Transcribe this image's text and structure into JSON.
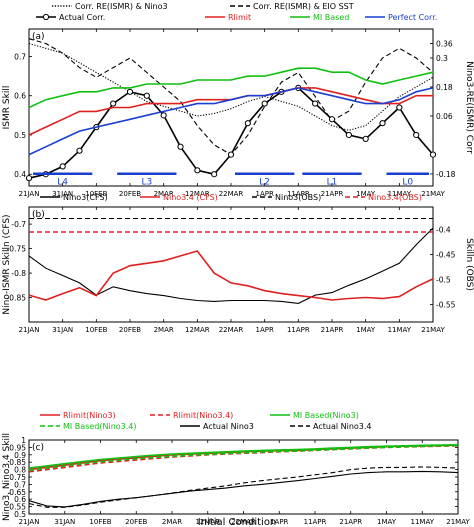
{
  "colors": {
    "black": "#000000",
    "red": "#e02020",
    "green": "#10c010",
    "blue": "#1a3fd0",
    "darkred": "#a52a2a"
  },
  "xticks": [
    "21JAN",
    "31JAN",
    "10FEB",
    "20FEB",
    "2MAR",
    "12MAR",
    "22MAR",
    "1APR",
    "11APR",
    "21APR",
    "1MAY",
    "11MAY",
    "21MAY"
  ],
  "shared_xlabel": "Initial Condition",
  "chart_data": [
    {
      "type": "line",
      "panel": "(a)",
      "ylabel": "ISMR Skill",
      "y2label": "Nino3-RE(ISMR) Corr",
      "ylim": [
        0.37,
        0.77
      ],
      "yticks": [
        0.4,
        0.5,
        0.6,
        0.7
      ],
      "y2lim": [
        -0.23,
        0.42
      ],
      "y2ticks": [
        -0.18,
        0.06,
        0.18,
        0.3,
        0.36
      ],
      "x": [
        0,
        1,
        2,
        3,
        4,
        5,
        6,
        7,
        8,
        9,
        10,
        11,
        12,
        13,
        14,
        15,
        16,
        17,
        18,
        19,
        20,
        21,
        22,
        23,
        24
      ],
      "legend": [
        "Corr. RE(ISMR) & Nino3",
        "Corr. RE(ISMR) & EIO SST",
        "Actual Corr.",
        "Rlimit",
        "MI Based",
        "Perfect Corr."
      ],
      "series": [
        {
          "name": "Corr. RE(ISMR) & Nino3",
          "axis": "right",
          "style": "dotted",
          "color": "black",
          "values": [
            0.36,
            0.34,
            0.32,
            0.28,
            0.24,
            0.2,
            0.16,
            0.12,
            0.1,
            0.08,
            0.06,
            0.07,
            0.09,
            0.12,
            0.14,
            0.12,
            0.1,
            0.06,
            0.02,
            0.0,
            0.02,
            0.08,
            0.14,
            0.18,
            0.22
          ]
        },
        {
          "name": "Corr. RE(ISMR) & EIO SST",
          "axis": "right",
          "style": "dashed",
          "color": "black",
          "values": [
            0.38,
            0.36,
            0.32,
            0.26,
            0.22,
            0.26,
            0.3,
            0.24,
            0.18,
            0.12,
            0.02,
            -0.06,
            -0.1,
            -0.02,
            0.1,
            0.2,
            0.24,
            0.14,
            0.04,
            0.08,
            0.2,
            0.3,
            0.34,
            0.3,
            0.24
          ]
        },
        {
          "name": "Actual Corr.",
          "axis": "left",
          "style": "solid-marker",
          "color": "black",
          "values": [
            0.39,
            0.4,
            0.42,
            0.46,
            0.52,
            0.58,
            0.61,
            0.6,
            0.55,
            0.47,
            0.41,
            0.4,
            0.45,
            0.53,
            0.58,
            0.61,
            0.62,
            0.58,
            0.54,
            0.5,
            0.49,
            0.53,
            0.57,
            0.5,
            0.45
          ]
        },
        {
          "name": "Rlimit",
          "axis": "left",
          "style": "solid",
          "color": "red",
          "values": [
            0.5,
            0.52,
            0.54,
            0.56,
            0.56,
            0.57,
            0.57,
            0.58,
            0.58,
            0.58,
            0.59,
            0.59,
            0.59,
            0.6,
            0.6,
            0.61,
            0.62,
            0.62,
            0.61,
            0.6,
            0.59,
            0.58,
            0.58,
            0.6,
            0.6
          ]
        },
        {
          "name": "MI Based",
          "axis": "left",
          "style": "solid",
          "color": "green",
          "values": [
            0.57,
            0.59,
            0.6,
            0.61,
            0.61,
            0.62,
            0.62,
            0.63,
            0.63,
            0.63,
            0.64,
            0.64,
            0.64,
            0.65,
            0.65,
            0.66,
            0.67,
            0.67,
            0.66,
            0.66,
            0.64,
            0.63,
            0.64,
            0.65,
            0.66
          ]
        },
        {
          "name": "Perfect Corr.",
          "axis": "left",
          "style": "solid",
          "color": "blue",
          "values": [
            0.45,
            0.47,
            0.49,
            0.51,
            0.52,
            0.53,
            0.54,
            0.55,
            0.56,
            0.57,
            0.58,
            0.58,
            0.59,
            0.6,
            0.6,
            0.61,
            0.62,
            0.61,
            0.6,
            0.59,
            0.58,
            0.58,
            0.59,
            0.61,
            0.62
          ]
        }
      ],
      "annotations": [
        {
          "text": "L4",
          "x_start": 0,
          "x_end": 4
        },
        {
          "text": "L3",
          "x_start": 5,
          "x_end": 9
        },
        {
          "text": "L2",
          "x_start": 12,
          "x_end": 16
        },
        {
          "text": "L1",
          "x_start": 16,
          "x_end": 20
        },
        {
          "text": "L0",
          "x_start": 21,
          "x_end": 24
        }
      ]
    },
    {
      "type": "line",
      "panel": "(b)",
      "ylabel": "Nino-ISMR Skilln (CFS)",
      "y2label": "Skilln (OBS)",
      "ylim": [
        -0.9,
        -0.665
      ],
      "yticks": [
        -0.85,
        -0.8,
        -0.75,
        -0.7
      ],
      "y2lim": [
        -0.585,
        -0.355
      ],
      "y2ticks": [
        -0.55,
        -0.5,
        -0.45,
        -0.4
      ],
      "x": [
        0,
        1,
        2,
        3,
        4,
        5,
        6,
        7,
        8,
        9,
        10,
        11,
        12,
        13,
        14,
        15,
        16,
        17,
        18,
        19,
        20,
        21,
        22,
        23,
        24
      ],
      "legend": [
        "Nino3(CFS)",
        "Nino3.4 (CFS)",
        "Nino3(OBS)",
        "Nino3.4(OBS)"
      ],
      "series": [
        {
          "name": "Nino3(CFS)",
          "axis": "left",
          "style": "solid",
          "color": "black",
          "values": [
            -0.765,
            -0.79,
            -0.805,
            -0.82,
            -0.845,
            -0.828,
            -0.836,
            -0.842,
            -0.846,
            -0.852,
            -0.856,
            -0.858,
            -0.856,
            -0.856,
            -0.856,
            -0.858,
            -0.862,
            -0.845,
            -0.84,
            -0.825,
            -0.812,
            -0.796,
            -0.78,
            -0.742,
            -0.708
          ]
        },
        {
          "name": "Nino3.4 (CFS)",
          "axis": "left",
          "style": "solid",
          "color": "red",
          "values": [
            -0.845,
            -0.855,
            -0.842,
            -0.83,
            -0.846,
            -0.8,
            -0.785,
            -0.78,
            -0.775,
            -0.765,
            -0.755,
            -0.8,
            -0.82,
            -0.826,
            -0.836,
            -0.842,
            -0.846,
            -0.85,
            -0.855,
            -0.852,
            -0.85,
            -0.852,
            -0.848,
            -0.828,
            -0.812
          ]
        },
        {
          "name": "Nino3(OBS)",
          "axis": "right",
          "style": "dashed",
          "color": "black",
          "values": [
            -0.378,
            -0.378,
            -0.378,
            -0.378,
            -0.378,
            -0.378,
            -0.378,
            -0.378,
            -0.378,
            -0.378,
            -0.378,
            -0.378,
            -0.378,
            -0.378,
            -0.378,
            -0.378,
            -0.378,
            -0.378,
            -0.378,
            -0.378,
            -0.378,
            -0.378,
            -0.378,
            -0.378,
            -0.378
          ]
        },
        {
          "name": "Nino3.4(OBS)",
          "axis": "right",
          "style": "dashed",
          "color": "red",
          "values": [
            -0.405,
            -0.405,
            -0.405,
            -0.405,
            -0.405,
            -0.405,
            -0.405,
            -0.405,
            -0.405,
            -0.405,
            -0.405,
            -0.405,
            -0.405,
            -0.405,
            -0.405,
            -0.405,
            -0.405,
            -0.405,
            -0.405,
            -0.405,
            -0.405,
            -0.405,
            -0.405,
            -0.405,
            -0.405
          ]
        }
      ]
    },
    {
      "type": "line",
      "panel": "(c)",
      "ylabel": "Nino3, Nino3.4 Skill",
      "ylim": [
        0.5,
        1.0
      ],
      "yticks": [
        0.5,
        0.55,
        0.6,
        0.65,
        0.7,
        0.75,
        0.8,
        0.85,
        0.9,
        0.95,
        1
      ],
      "x": [
        0,
        1,
        2,
        3,
        4,
        5,
        6,
        7,
        8,
        9,
        10,
        11,
        12,
        13,
        14,
        15,
        16,
        17,
        18,
        19,
        20,
        21,
        22,
        23,
        24
      ],
      "legend": [
        "Rlimit(Nino3)",
        "Rlimit(Nino3.4)",
        "MI Based(Nino3)",
        "MI Based(Nino3.4)",
        "Actual Nino3",
        "Actual Nino3.4"
      ],
      "series": [
        {
          "name": "Rlimit(Nino3)",
          "style": "solid",
          "color": "red",
          "values": [
            0.8,
            0.815,
            0.83,
            0.845,
            0.86,
            0.87,
            0.88,
            0.89,
            0.9,
            0.905,
            0.91,
            0.915,
            0.92,
            0.925,
            0.928,
            0.93,
            0.935,
            0.94,
            0.945,
            0.95,
            0.955,
            0.958,
            0.96,
            0.962,
            0.965
          ]
        },
        {
          "name": "Rlimit(Nino3.4)",
          "style": "dashed",
          "color": "red",
          "values": [
            0.785,
            0.8,
            0.815,
            0.83,
            0.845,
            0.855,
            0.865,
            0.875,
            0.885,
            0.892,
            0.9,
            0.905,
            0.91,
            0.915,
            0.92,
            0.925,
            0.93,
            0.935,
            0.94,
            0.945,
            0.95,
            0.953,
            0.956,
            0.958,
            0.96
          ]
        },
        {
          "name": "MI Based(Nino3)",
          "style": "solid",
          "color": "green",
          "values": [
            0.81,
            0.825,
            0.84,
            0.855,
            0.868,
            0.878,
            0.888,
            0.897,
            0.905,
            0.91,
            0.915,
            0.92,
            0.925,
            0.93,
            0.933,
            0.936,
            0.94,
            0.945,
            0.95,
            0.955,
            0.958,
            0.961,
            0.964,
            0.966,
            0.968
          ]
        },
        {
          "name": "MI Based(Nino3.4)",
          "style": "dashed",
          "color": "green",
          "values": [
            0.795,
            0.81,
            0.825,
            0.84,
            0.853,
            0.863,
            0.873,
            0.882,
            0.89,
            0.897,
            0.903,
            0.908,
            0.913,
            0.918,
            0.922,
            0.926,
            0.931,
            0.936,
            0.941,
            0.946,
            0.95,
            0.954,
            0.957,
            0.96,
            0.962
          ]
        },
        {
          "name": "Actual Nino3",
          "style": "solid",
          "color": "black",
          "values": [
            0.59,
            0.555,
            0.548,
            0.565,
            0.585,
            0.6,
            0.61,
            0.625,
            0.64,
            0.655,
            0.665,
            0.675,
            0.69,
            0.7,
            0.712,
            0.725,
            0.74,
            0.755,
            0.77,
            0.78,
            0.785,
            0.785,
            0.788,
            0.785,
            0.78
          ]
        },
        {
          "name": "Actual Nino3.4",
          "style": "dashed",
          "color": "black",
          "values": [
            0.57,
            0.545,
            0.545,
            0.56,
            0.58,
            0.595,
            0.61,
            0.625,
            0.642,
            0.66,
            0.675,
            0.69,
            0.71,
            0.725,
            0.738,
            0.75,
            0.765,
            0.78,
            0.8,
            0.81,
            0.815,
            0.815,
            0.818,
            0.815,
            0.81
          ]
        }
      ]
    }
  ]
}
